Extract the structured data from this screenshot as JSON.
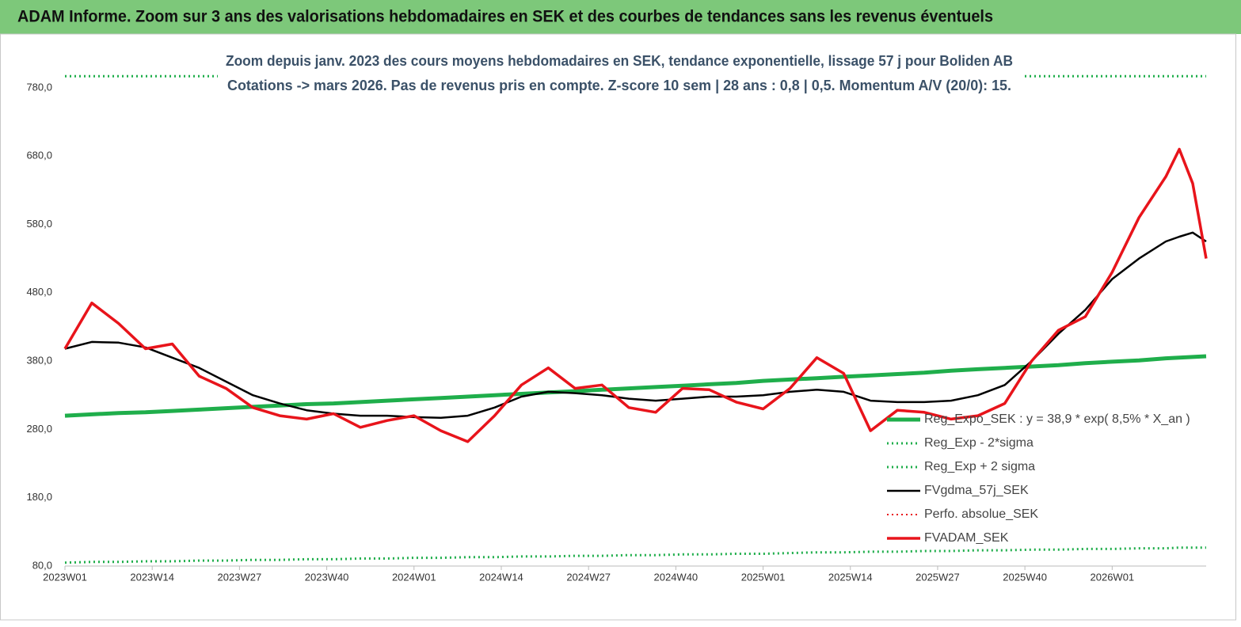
{
  "chart_data": {
    "type": "line",
    "title": "ADAM Informe. Zoom sur 3 ans des valorisations hebdomadaires en SEK et des courbes de tendances sans les revenus éventuels",
    "subtitle": [
      "Zoom depuis janv. 2023 des cours moyens hebdomadaires en SEK, tendance exponentielle, lissage 57 j pour Boliden AB",
      "Cotations -> mars 2026. Pas de revenus pris en compte. Z-score 10 sem  | 28 ans : 0,8 | 0,5. Momentum A/V (20/0): 15."
    ],
    "x": [
      0,
      4,
      8,
      12,
      16,
      20,
      24,
      28,
      32,
      36,
      40,
      44,
      48,
      52,
      56,
      60,
      64,
      68,
      72,
      76,
      80,
      84,
      88,
      92,
      96,
      100,
      104,
      108,
      112,
      116,
      120,
      124,
      128,
      132,
      136,
      140,
      144,
      148,
      152,
      156,
      160,
      164,
      166,
      168,
      170
    ],
    "xlim": [
      0,
      170
    ],
    "xticks": [
      {
        "value": 0,
        "label": "2023W01"
      },
      {
        "value": 13,
        "label": "2023W14"
      },
      {
        "value": 26,
        "label": "2023W27"
      },
      {
        "value": 39,
        "label": "2023W40"
      },
      {
        "value": 52,
        "label": "2024W01"
      },
      {
        "value": 65,
        "label": "2024W14"
      },
      {
        "value": 78,
        "label": "2024W27"
      },
      {
        "value": 91,
        "label": "2024W40"
      },
      {
        "value": 104,
        "label": "2025W01"
      },
      {
        "value": 117,
        "label": "2025W14"
      },
      {
        "value": 130,
        "label": "2025W27"
      },
      {
        "value": 143,
        "label": "2025W40"
      },
      {
        "value": 156,
        "label": "2026W01"
      }
    ],
    "ylim": [
      80,
      800
    ],
    "yticks": [
      {
        "value": 80,
        "label": "80,0"
      },
      {
        "value": 180,
        "label": "180,0"
      },
      {
        "value": 280,
        "label": "280,0"
      },
      {
        "value": 380,
        "label": "380,0"
      },
      {
        "value": 480,
        "label": "480,0"
      },
      {
        "value": 580,
        "label": "580,0"
      },
      {
        "value": 680,
        "label": "680,0"
      },
      {
        "value": 780,
        "label": "780,0"
      }
    ],
    "grid": false,
    "series": [
      {
        "name": "Reg_Expo_SEK : y = 38,9 * exp( 8,5% *  X_an )",
        "color": "#1fae4b",
        "style": "solid",
        "width": 5,
        "values": [
          300,
          302,
          304,
          305,
          307,
          309,
          311,
          313,
          315,
          317,
          318,
          320,
          322,
          324,
          326,
          328,
          330,
          332,
          334,
          336,
          338,
          340,
          342,
          344,
          346,
          348,
          351,
          353,
          355,
          357,
          359,
          361,
          363,
          366,
          368,
          370,
          372,
          374,
          377,
          379,
          381,
          384,
          385,
          386,
          387
        ]
      },
      {
        "name": "Reg_Exp - 2*sigma",
        "color": "#1fae4b",
        "style": "dotted",
        "width": 3,
        "values": [
          85,
          86,
          86,
          87,
          87,
          88,
          88,
          89,
          89,
          90,
          90,
          91,
          91,
          92,
          92,
          93,
          93,
          94,
          94,
          95,
          95,
          96,
          96,
          97,
          97,
          98,
          98,
          99,
          100,
          100,
          101,
          101,
          102,
          102,
          103,
          103,
          104,
          104,
          105,
          105,
          106,
          106,
          107,
          107,
          107
        ]
      },
      {
        "name": "Reg_Exp + 2 sigma",
        "color": "#1fae4b",
        "style": "dotted",
        "width": 3,
        "values": [
          797,
          797,
          797,
          797,
          797,
          797,
          797,
          797,
          797,
          797,
          797,
          797,
          797,
          797,
          797,
          797,
          797,
          797,
          797,
          797,
          797,
          797,
          797,
          797,
          797,
          797,
          797,
          797,
          797,
          797,
          797,
          797,
          797,
          797,
          797,
          797,
          797,
          797,
          797,
          797,
          797,
          797,
          797,
          797,
          797
        ]
      },
      {
        "name": "FVgdma_57j_SEK",
        "color": "#000000",
        "style": "solid",
        "width": 2.5,
        "values": [
          398,
          408,
          407,
          400,
          385,
          370,
          350,
          330,
          318,
          308,
          303,
          300,
          300,
          298,
          297,
          300,
          312,
          328,
          335,
          333,
          330,
          325,
          322,
          325,
          328,
          328,
          330,
          335,
          338,
          335,
          322,
          320,
          320,
          322,
          330,
          345,
          380,
          420,
          455,
          500,
          530,
          555,
          562,
          568,
          555
        ]
      },
      {
        "name": "Perfo. absolue_SEK",
        "color": "#e8141b",
        "style": "dotted",
        "width": 2,
        "values": [
          null,
          null,
          null,
          null,
          null,
          null,
          null,
          null,
          null,
          null,
          null,
          null,
          null,
          null,
          null,
          null,
          null,
          null,
          null,
          null,
          null,
          null,
          null,
          null,
          null,
          null,
          null,
          null,
          null,
          null,
          null,
          null,
          null,
          null,
          null,
          null,
          null,
          null,
          null,
          null,
          null,
          null,
          null,
          null,
          null
        ]
      },
      {
        "name": "FVADAM_SEK",
        "color": "#e8141b",
        "style": "solid",
        "width": 3.5,
        "values": [
          398,
          465,
          435,
          398,
          405,
          358,
          340,
          312,
          300,
          295,
          303,
          283,
          293,
          300,
          278,
          262,
          300,
          345,
          370,
          340,
          345,
          312,
          305,
          340,
          338,
          320,
          310,
          340,
          385,
          362,
          278,
          308,
          305,
          295,
          300,
          318,
          380,
          425,
          445,
          510,
          590,
          650,
          690,
          640,
          530
        ]
      }
    ]
  }
}
